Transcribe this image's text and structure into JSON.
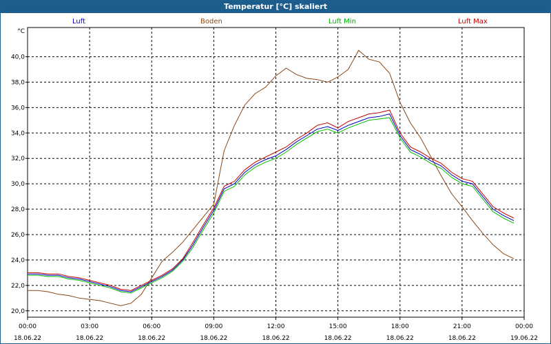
{
  "chart_data": {
    "type": "line",
    "title": "Temperatur [°C] skaliert",
    "ylabel": "°C",
    "xlabel": "",
    "ylim": [
      19.5,
      42.3
    ],
    "xlim": [
      0,
      24
    ],
    "grid": true,
    "legend_position": "top",
    "y_ticks": [
      20,
      22,
      24,
      26,
      28,
      30,
      32,
      34,
      36,
      38,
      40
    ],
    "y_tick_labels": [
      "20,0",
      "22,0",
      "24,0",
      "26,0",
      "28,0",
      "30,0",
      "32,0",
      "34,0",
      "36,0",
      "38,0",
      "40,0"
    ],
    "x_ticks": [
      0,
      3,
      6,
      9,
      12,
      15,
      18,
      21,
      24
    ],
    "x_tick_labels": [
      {
        "time": "00:00",
        "date": "18.06.22"
      },
      {
        "time": "03:00",
        "date": "18.06.22"
      },
      {
        "time": "06:00",
        "date": "18.06.22"
      },
      {
        "time": "09:00",
        "date": "18.06.22"
      },
      {
        "time": "12:00",
        "date": "18.06.22"
      },
      {
        "time": "15:00",
        "date": "18.06.22"
      },
      {
        "time": "18:00",
        "date": "18.06.22"
      },
      {
        "time": "21:00",
        "date": "18.06.22"
      },
      {
        "time": "00:00",
        "date": "19.06.22"
      }
    ],
    "x": [
      0,
      0.5,
      1,
      1.5,
      2,
      2.5,
      3,
      3.5,
      4,
      4.5,
      5,
      5.5,
      6,
      6.5,
      7,
      7.5,
      8,
      8.5,
      9,
      9.5,
      10,
      10.5,
      11,
      11.5,
      12,
      12.5,
      13,
      13.5,
      14,
      14.5,
      15,
      15.5,
      16,
      16.5,
      17,
      17.5,
      18,
      18.5,
      19,
      19.5,
      20,
      20.5,
      21,
      21.5,
      22,
      22.5,
      23,
      23.5
    ],
    "series": [
      {
        "name": "Luft",
        "color": "#0000c0",
        "values": [
          22.9,
          22.9,
          22.8,
          22.8,
          22.6,
          22.5,
          22.3,
          22.1,
          21.9,
          21.6,
          21.5,
          21.9,
          22.3,
          22.7,
          23.2,
          24.0,
          25.2,
          26.6,
          27.9,
          29.6,
          30.0,
          30.9,
          31.5,
          31.9,
          32.2,
          32.7,
          33.3,
          33.8,
          34.3,
          34.5,
          34.2,
          34.6,
          34.9,
          35.2,
          35.3,
          35.5,
          33.8,
          32.7,
          32.3,
          31.8,
          31.4,
          30.7,
          30.2,
          30.0,
          29.0,
          28.0,
          27.5,
          27.1
        ]
      },
      {
        "name": "Boden",
        "color": "#8b4513",
        "values": [
          21.6,
          21.6,
          21.5,
          21.3,
          21.2,
          21.0,
          20.9,
          20.8,
          20.6,
          20.4,
          20.6,
          21.3,
          22.6,
          23.9,
          24.6,
          25.4,
          26.4,
          27.4,
          28.4,
          32.6,
          34.6,
          36.2,
          37.1,
          37.6,
          38.5,
          39.1,
          38.6,
          38.3,
          38.2,
          38.0,
          38.4,
          39.0,
          40.5,
          39.8,
          39.6,
          38.7,
          36.4,
          34.8,
          33.6,
          32.1,
          30.6,
          29.2,
          28.2,
          27.1,
          26.1,
          25.2,
          24.5,
          24.1
        ]
      },
      {
        "name": "Luft Min",
        "color": "#00c000",
        "values": [
          22.8,
          22.8,
          22.7,
          22.7,
          22.5,
          22.4,
          22.2,
          22.0,
          21.8,
          21.5,
          21.4,
          21.8,
          22.2,
          22.6,
          23.1,
          23.9,
          25.0,
          26.4,
          27.7,
          29.4,
          29.8,
          30.7,
          31.3,
          31.7,
          32.0,
          32.5,
          33.1,
          33.6,
          34.1,
          34.3,
          34.0,
          34.4,
          34.7,
          35.0,
          35.1,
          35.2,
          33.6,
          32.5,
          32.1,
          31.6,
          31.2,
          30.5,
          30.0,
          29.8,
          28.8,
          27.8,
          27.3,
          26.9
        ]
      },
      {
        "name": "Luft Max",
        "color": "#c00000",
        "values": [
          23.0,
          23.0,
          22.9,
          22.9,
          22.7,
          22.6,
          22.4,
          22.2,
          22.0,
          21.7,
          21.6,
          22.0,
          22.4,
          22.8,
          23.3,
          24.1,
          25.4,
          26.8,
          28.1,
          29.8,
          30.2,
          31.1,
          31.7,
          32.1,
          32.5,
          32.9,
          33.5,
          34.0,
          34.6,
          34.8,
          34.4,
          34.9,
          35.2,
          35.5,
          35.6,
          35.8,
          34.0,
          32.9,
          32.5,
          32.0,
          31.6,
          30.9,
          30.4,
          30.2,
          29.2,
          28.2,
          27.7,
          27.3
        ]
      }
    ]
  }
}
